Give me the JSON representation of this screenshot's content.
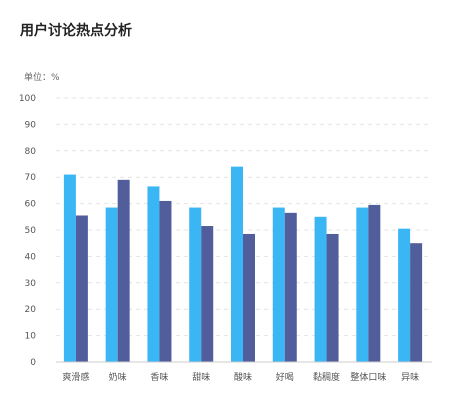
{
  "chart_data": {
    "type": "bar",
    "title": "用户讨论热点分析",
    "unit_label": "单位：%",
    "categories": [
      "爽滑感",
      "奶味",
      "香味",
      "甜味",
      "酸味",
      "好喝",
      "黏稠度",
      "整体口味",
      "异味"
    ],
    "series": [
      {
        "color": "#3bb6f5",
        "values": [
          71,
          58.5,
          66.5,
          58.5,
          74,
          58.5,
          55,
          58.5,
          50.5
        ]
      },
      {
        "color": "#515e9b",
        "values": [
          55.5,
          69,
          61,
          51.5,
          48.5,
          56.5,
          48.5,
          59.5,
          45
        ]
      }
    ],
    "ylim": [
      0,
      100
    ],
    "yticks": [
      0,
      10,
      20,
      30,
      40,
      50,
      60,
      70,
      80,
      90,
      100
    ],
    "grid": true
  }
}
